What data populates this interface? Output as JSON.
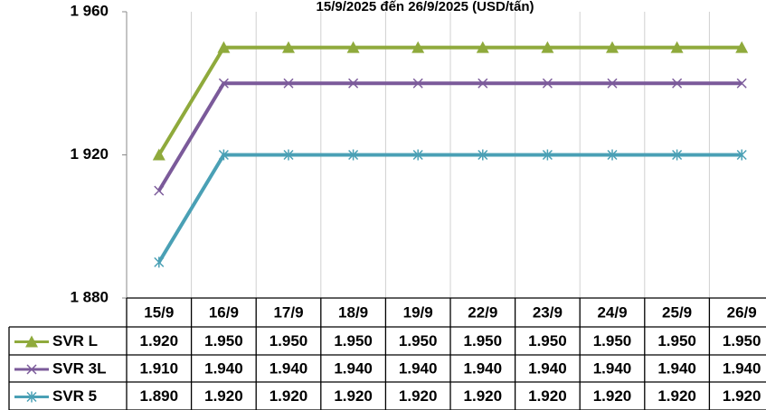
{
  "chart_data": {
    "type": "line",
    "title": "15/9/2025 đến 26/9/2025 (USD/tấn)",
    "categories": [
      "15/9",
      "16/9",
      "17/9",
      "18/9",
      "19/9",
      "22/9",
      "23/9",
      "24/9",
      "25/9",
      "26/9"
    ],
    "series": [
      {
        "name": "SVR L",
        "color": "#8faa3c",
        "marker": "triangle",
        "values": [
          1920,
          1950,
          1950,
          1950,
          1950,
          1950,
          1950,
          1950,
          1950,
          1950
        ],
        "value_labels": [
          "1.920",
          "1.950",
          "1.950",
          "1.950",
          "1.950",
          "1.950",
          "1.950",
          "1.950",
          "1.950",
          "1.950"
        ]
      },
      {
        "name": "SVR 3L",
        "color": "#7b5a9a",
        "marker": "x",
        "values": [
          1910,
          1940,
          1940,
          1940,
          1940,
          1940,
          1940,
          1940,
          1940,
          1940
        ],
        "value_labels": [
          "1.910",
          "1.940",
          "1.940",
          "1.940",
          "1.940",
          "1.940",
          "1.940",
          "1.940",
          "1.940",
          "1.940"
        ]
      },
      {
        "name": "SVR 5",
        "color": "#4aa0b5",
        "marker": "asterisk",
        "values": [
          1890,
          1920,
          1920,
          1920,
          1920,
          1920,
          1920,
          1920,
          1920,
          1920
        ],
        "value_labels": [
          "1.890",
          "1.920",
          "1.920",
          "1.920",
          "1.920",
          "1.920",
          "1.920",
          "1.920",
          "1.920",
          "1.920"
        ]
      }
    ],
    "ylim": [
      1880,
      1960
    ],
    "yticks": [
      {
        "value": 1880,
        "label": "1 880"
      },
      {
        "value": 1920,
        "label": "1 920"
      },
      {
        "value": 1960,
        "label": "1 960"
      }
    ]
  }
}
